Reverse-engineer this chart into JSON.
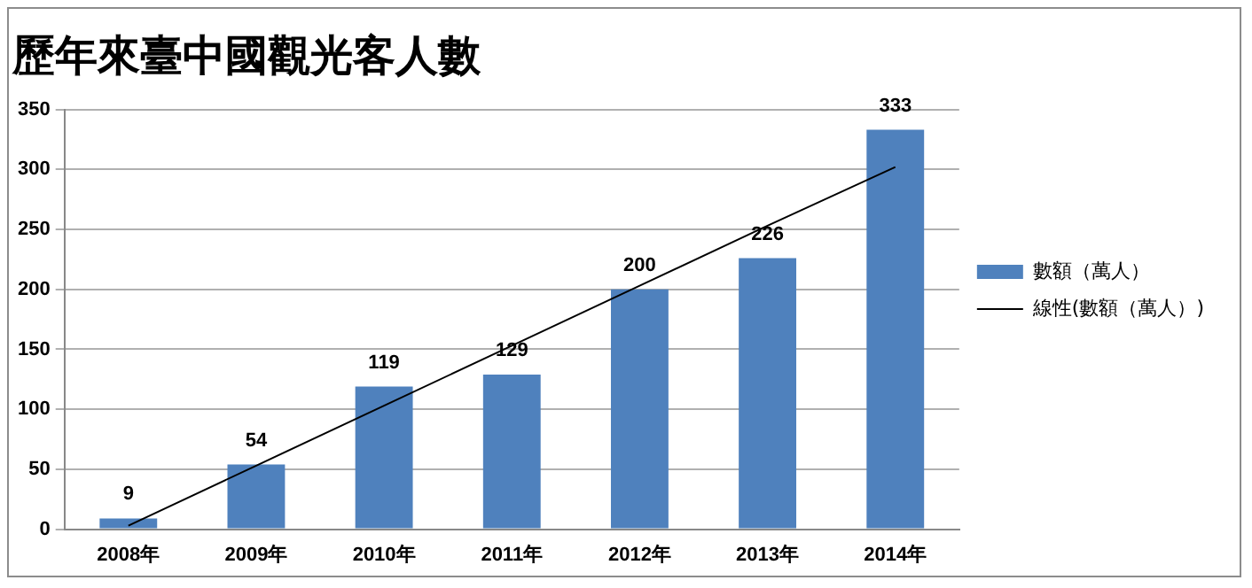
{
  "chart_data": {
    "type": "bar",
    "title": "歷年來臺中國觀光客人數",
    "categories": [
      "2008年",
      "2009年",
      "2010年",
      "2011年",
      "2012年",
      "2013年",
      "2014年"
    ],
    "series": [
      {
        "name": "數額（萬人）",
        "color": "#4f81bd",
        "values": [
          9,
          54,
          119,
          129,
          200,
          226,
          333
        ],
        "value_labels": [
          "9",
          "54",
          "119",
          "129",
          "200",
          "226",
          "333"
        ]
      },
      {
        "name": "線性(數額（萬人）)",
        "type": "line",
        "color": "#000000",
        "values": [
          3,
          53,
          103,
          153,
          203,
          253,
          302
        ]
      }
    ],
    "ylim": [
      0,
      350
    ],
    "yticks": [
      0,
      50,
      100,
      150,
      200,
      250,
      300,
      350
    ],
    "grid": "y",
    "legend": "right",
    "marker": "none"
  }
}
